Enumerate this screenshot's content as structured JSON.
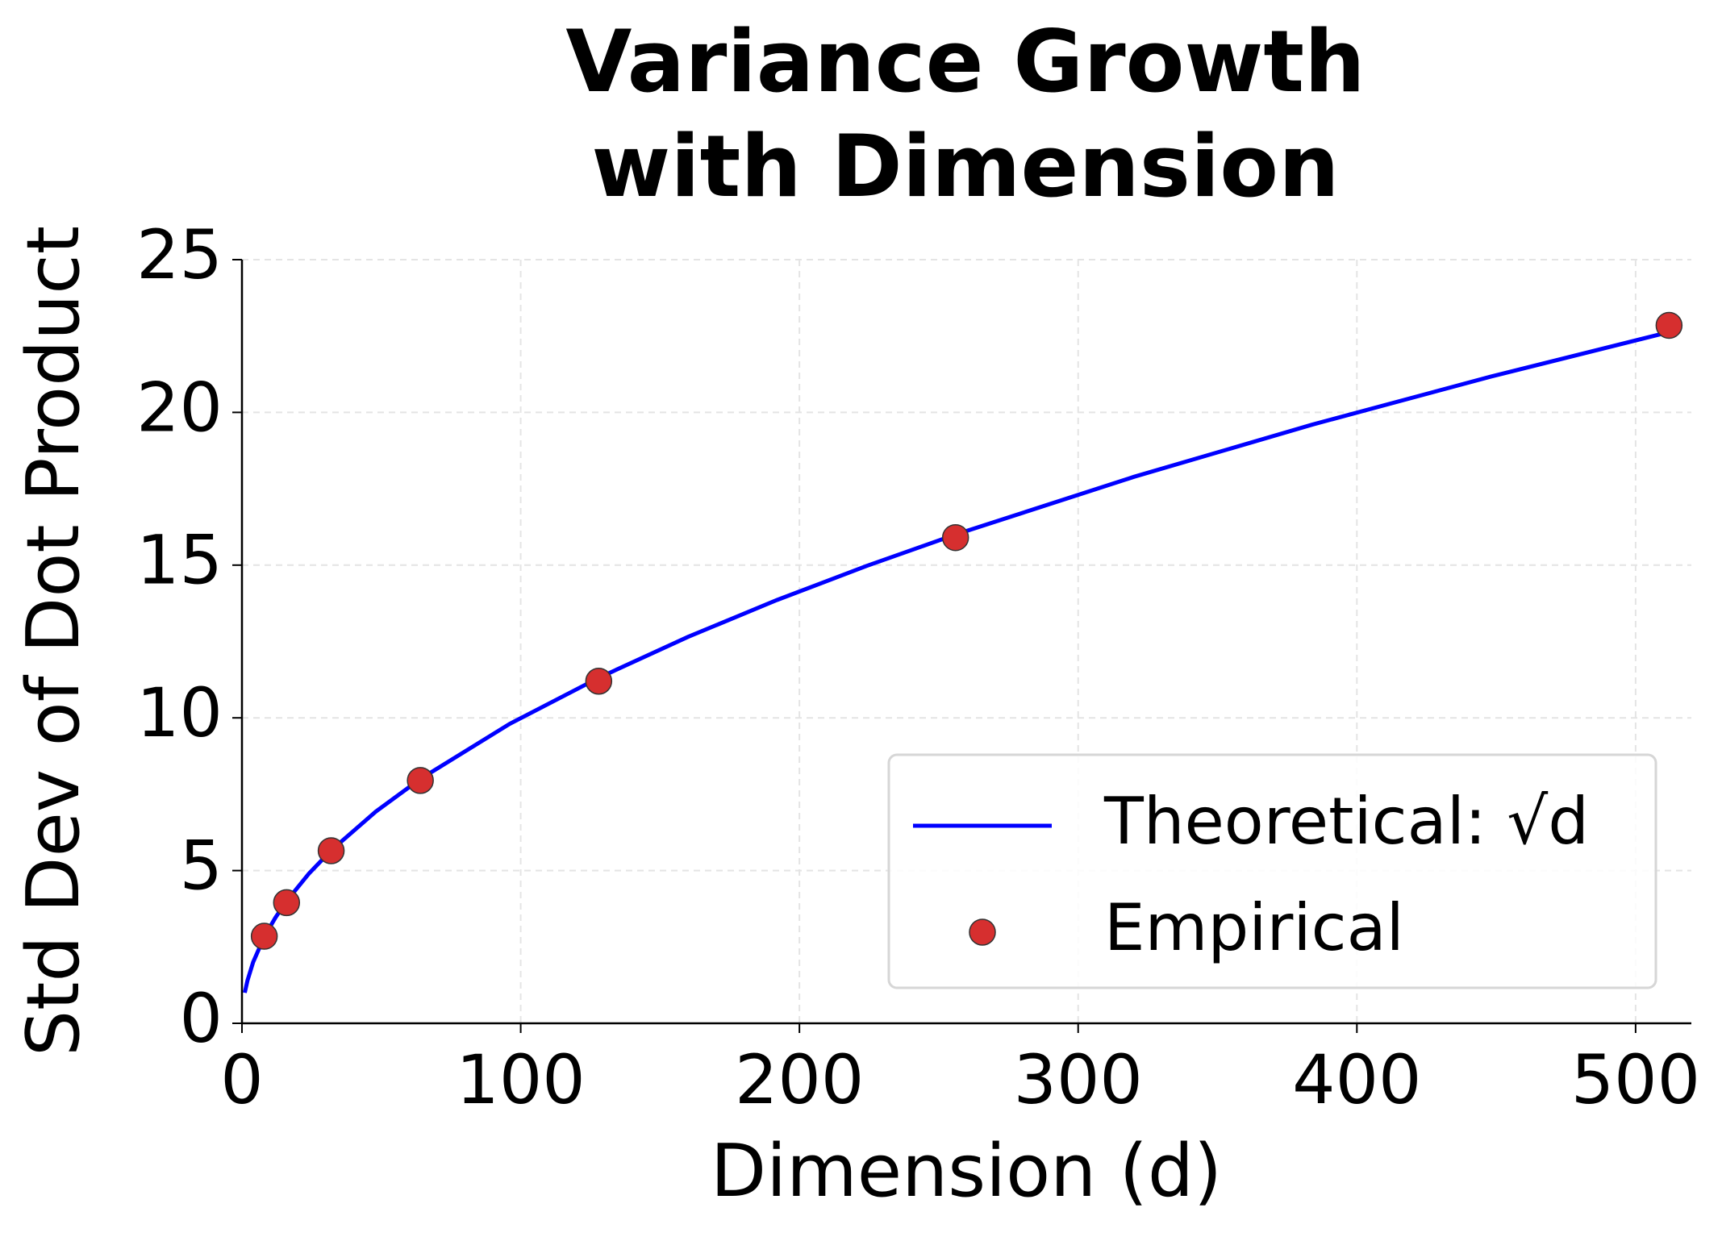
{
  "chart_data": {
    "type": "line",
    "title": [
      "Variance Growth",
      "with Dimension"
    ],
    "x_label": "Dimension (d)",
    "y_label": "Std Dev of Dot Product",
    "xlim": [
      0,
      520
    ],
    "xticks": [
      0,
      100,
      200,
      300,
      400,
      500
    ],
    "ylim": [
      0,
      25
    ],
    "yticks": [
      0,
      5,
      10,
      15,
      20,
      25
    ],
    "grid": true,
    "legend": "lower right",
    "series": [
      {
        "name": "Theoretical: √d",
        "type": "line",
        "color": "#0000ff",
        "x": [
          1,
          2,
          4,
          8,
          12,
          16,
          24,
          32,
          48,
          64,
          96,
          128,
          160,
          192,
          224,
          256,
          320,
          384,
          448,
          512
        ],
        "values": [
          1,
          1.41,
          2,
          2.83,
          3.46,
          4,
          4.9,
          5.66,
          6.93,
          8,
          9.8,
          11.31,
          12.65,
          13.86,
          14.97,
          16,
          17.89,
          19.6,
          21.17,
          22.63
        ]
      },
      {
        "name": "Empirical",
        "type": "scatter",
        "color": "#d62f2f",
        "x": [
          8,
          16,
          32,
          64,
          128,
          256,
          512
        ],
        "values": [
          2.85,
          3.95,
          5.65,
          7.95,
          11.2,
          15.9,
          22.85
        ]
      }
    ]
  }
}
